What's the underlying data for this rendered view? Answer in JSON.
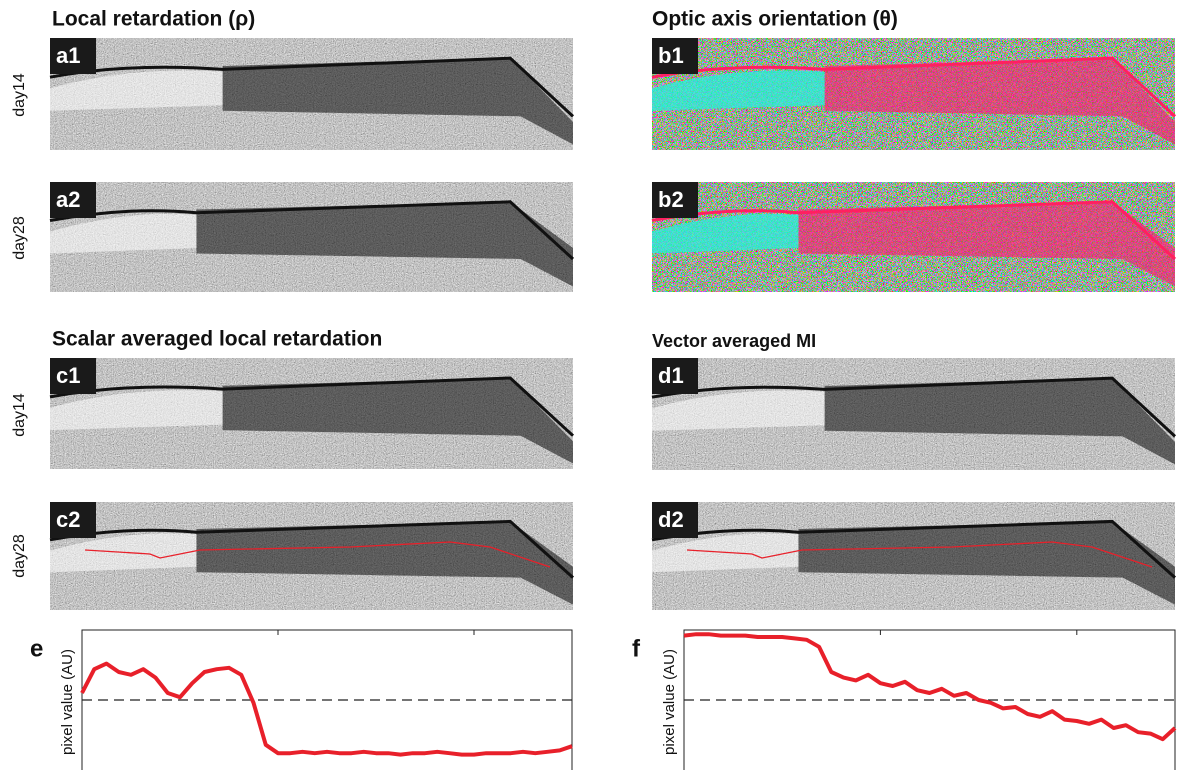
{
  "titles": [
    "Local retardation (ρ)",
    "Optic axis orientation (θ)",
    "Scalar averaged local retardation",
    "Vector averaged MI"
  ],
  "panel_labels": [
    "a1",
    "a2",
    "b1",
    "b2",
    "c1",
    "c2",
    "d1",
    "d2"
  ],
  "row_labels": [
    "day14",
    "day28",
    "day14",
    "day28"
  ],
  "chart_data": [
    {
      "type": "line",
      "label": "e",
      "ylabel": "pixel value (AU)",
      "color": "#e8202a",
      "ylim": [
        0,
        1
      ],
      "reference": 0.5,
      "values": [
        0.55,
        0.72,
        0.76,
        0.7,
        0.68,
        0.72,
        0.66,
        0.55,
        0.52,
        0.62,
        0.7,
        0.72,
        0.73,
        0.68,
        0.48,
        0.18,
        0.12,
        0.12,
        0.13,
        0.12,
        0.13,
        0.12,
        0.12,
        0.13,
        0.12,
        0.12,
        0.11,
        0.12,
        0.12,
        0.13,
        0.12,
        0.11,
        0.11,
        0.12,
        0.12,
        0.12,
        0.13,
        0.12,
        0.13,
        0.14,
        0.17
      ]
    },
    {
      "type": "line",
      "label": "f",
      "ylabel": "pixel value (AU)",
      "color": "#e8202a",
      "ylim": [
        0,
        1
      ],
      "reference": 0.5,
      "values": [
        0.96,
        0.97,
        0.97,
        0.96,
        0.96,
        0.96,
        0.95,
        0.95,
        0.95,
        0.94,
        0.93,
        0.88,
        0.7,
        0.66,
        0.64,
        0.68,
        0.62,
        0.6,
        0.63,
        0.57,
        0.55,
        0.58,
        0.53,
        0.55,
        0.5,
        0.48,
        0.44,
        0.45,
        0.4,
        0.38,
        0.42,
        0.36,
        0.35,
        0.33,
        0.36,
        0.3,
        0.32,
        0.27,
        0.26,
        0.22,
        0.3
      ]
    }
  ]
}
